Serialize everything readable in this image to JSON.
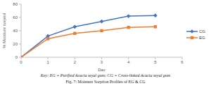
{
  "chart_data": {
    "type": "line",
    "x_label": "Day",
    "y_label": "% Moisture sorped",
    "x": [
      0,
      1,
      2,
      3,
      4,
      5
    ],
    "series": [
      {
        "name": "CG",
        "color": "#4472c4",
        "marker": "diamond",
        "values": [
          0,
          32,
          46,
          54,
          62,
          63
        ]
      },
      {
        "name": "EG",
        "color": "#ed7d31",
        "marker": "square",
        "values": [
          0,
          28,
          36,
          40,
          45,
          46
        ]
      }
    ],
    "xlim": [
      0,
      6
    ],
    "xticks": [
      0,
      1,
      2,
      3,
      4,
      5,
      6
    ],
    "ylim": [
      0,
      80
    ],
    "yticks": [
      0,
      20,
      40,
      60,
      80
    ],
    "grid": false,
    "legend": "right",
    "annotations": [
      "Key: EG = Purified Acacia seyal gum; CG = Cross-linked Acacia seyal gum",
      "Fig. 7: Moisture Sorption Profiles of EG & CG"
    ]
  }
}
